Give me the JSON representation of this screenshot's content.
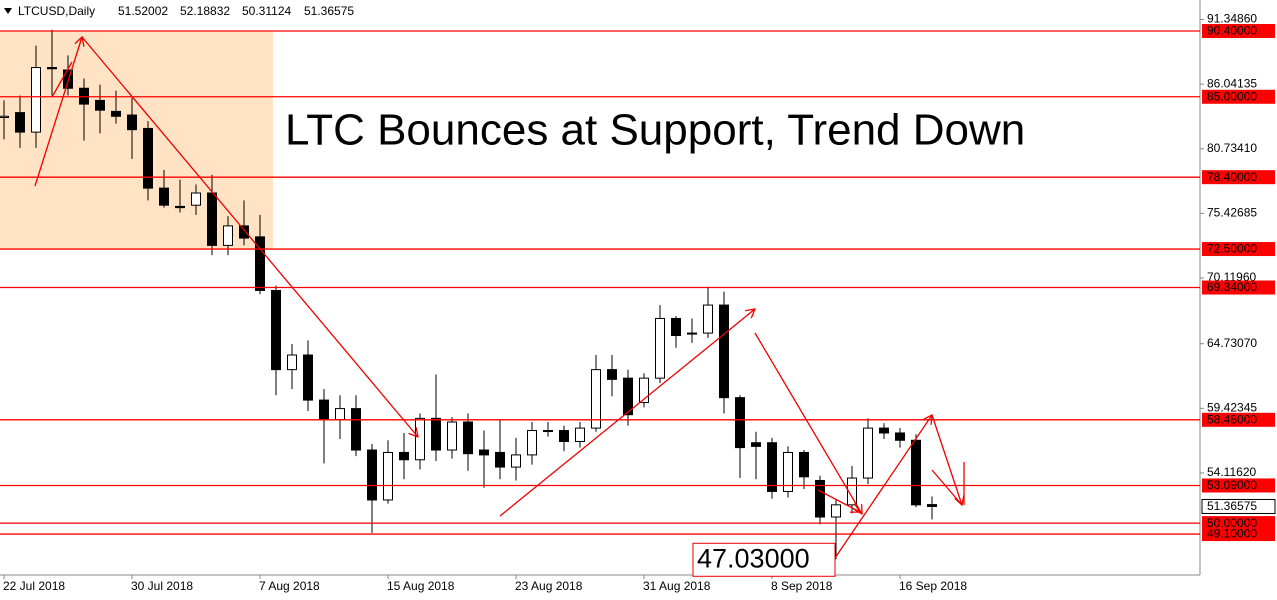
{
  "chart_data": {
    "type": "candlestick",
    "symbol": "LTCUSD,Daily",
    "title": "LTC Bounces at Support, Trend Down",
    "categories": [
      "22 Jul 2018",
      null,
      null,
      null,
      null,
      null,
      null,
      null,
      "30 Jul 2018",
      null,
      null,
      null,
      null,
      null,
      null,
      null,
      "7 Aug 2018",
      null,
      null,
      null,
      null,
      null,
      null,
      null,
      "15 Aug 2018",
      null,
      null,
      null,
      null,
      null,
      null,
      null,
      "23 Aug 2018",
      null,
      null,
      null,
      null,
      null,
      null,
      null,
      "31 Aug 2018",
      null,
      null,
      null,
      null,
      null,
      null,
      null,
      "8 Sep 2018",
      null,
      null,
      null,
      null,
      null,
      null,
      null,
      "16 Sep 2018",
      null,
      null
    ],
    "open": [
      83.3,
      83.7,
      82.1,
      87.4,
      87.2,
      85.7,
      84.7,
      83.8,
      83.5,
      82.4,
      77.5,
      76.0,
      76.1,
      77.1,
      72.8,
      74.4,
      73.5,
      69.1,
      62.6,
      63.8,
      60.1,
      58.5,
      59.4,
      56.0,
      51.9,
      55.8,
      55.2,
      58.6,
      56.0,
      58.3,
      56.0,
      55.8,
      54.6,
      55.6,
      57.6,
      57.6,
      56.7,
      57.8,
      62.6,
      61.9,
      59.9,
      61.9,
      66.8,
      65.6,
      65.6,
      67.9,
      60.3,
      56.6,
      56.6,
      52.6,
      55.8,
      53.5,
      50.5,
      51.5,
      53.7,
      57.8,
      57.4,
      56.8,
      51.52002
    ],
    "high": [
      84.7,
      85.1,
      89.2,
      90.5,
      88.4,
      86.5,
      86.0,
      85.5,
      84.9,
      83.0,
      79.0,
      78.2,
      77.8,
      78.6,
      75.2,
      76.5,
      75.3,
      69.5,
      64.7,
      65.0,
      61.0,
      60.5,
      60.5,
      56.5,
      56.8,
      57.4,
      59.0,
      62.2,
      58.7,
      59.0,
      57.6,
      58.5,
      57.0,
      58.3,
      58.3,
      58.0,
      58.3,
      63.8,
      63.8,
      62.6,
      62.3,
      67.9,
      67.0,
      66.8,
      69.4,
      69.0,
      60.5,
      57.5,
      57.0,
      56.3,
      56.0,
      53.9,
      52.0,
      54.7,
      58.6,
      58.2,
      57.8,
      57.3,
      52.18832
    ],
    "low": [
      81.5,
      80.8,
      80.8,
      85.1,
      85.1,
      81.4,
      82.0,
      82.8,
      79.9,
      76.5,
      75.9,
      75.5,
      75.3,
      72.0,
      72.0,
      72.8,
      68.8,
      60.5,
      61.0,
      59.2,
      54.9,
      56.9,
      55.5,
      49.2,
      51.6,
      53.6,
      54.4,
      55.1,
      55.3,
      54.3,
      52.9,
      53.6,
      53.5,
      54.8,
      57.1,
      55.9,
      56.2,
      57.5,
      60.4,
      58.0,
      59.5,
      61.5,
      64.4,
      64.8,
      65.2,
      59.0,
      53.7,
      53.6,
      52.0,
      52.1,
      52.8,
      49.9,
      47.03,
      50.8,
      53.2,
      56.9,
      56.2,
      51.3,
      50.31124
    ],
    "close": [
      83.4,
      82.1,
      87.4,
      87.3,
      85.7,
      84.4,
      83.9,
      83.4,
      82.3,
      77.5,
      76.1,
      75.9,
      77.1,
      72.8,
      74.4,
      73.4,
      69.1,
      62.6,
      63.8,
      60.1,
      58.5,
      59.4,
      56.0,
      51.9,
      55.8,
      55.2,
      58.6,
      56.0,
      58.3,
      55.7,
      55.6,
      54.6,
      55.6,
      57.6,
      57.6,
      56.7,
      57.8,
      62.6,
      61.8,
      58.9,
      61.9,
      66.8,
      65.4,
      65.6,
      67.9,
      60.3,
      56.2,
      56.3,
      52.6,
      55.8,
      53.8,
      50.5,
      51.5,
      53.7,
      57.8,
      57.4,
      56.8,
      51.5,
      51.36575
    ],
    "up_color": "#ffffff",
    "down_color": "#000000",
    "ylim": [
      45.74,
      92.945
    ],
    "yticks": [
      {
        "value": 91.3486,
        "label": "91.34860"
      },
      {
        "value": 86.04135,
        "label": "86.04135"
      },
      {
        "value": 80.7341,
        "label": "80.73410"
      },
      {
        "value": 75.42685,
        "label": "75.42685"
      },
      {
        "value": 70.1196,
        "label": "70.11960"
      },
      {
        "value": 64.7307,
        "label": "64.73070"
      },
      {
        "value": 59.42345,
        "label": "59.42345"
      },
      {
        "value": 54.1162,
        "label": "54.11620"
      }
    ],
    "levels": [
      {
        "value": 90.4,
        "label": "90.40000"
      },
      {
        "value": 85,
        "label": "85.00000"
      },
      {
        "value": 78.4,
        "label": "78.40000"
      },
      {
        "value": 72.5,
        "label": "72.50000"
      },
      {
        "value": 69.34,
        "label": "69.34000"
      },
      {
        "value": 58.48,
        "label": "58.48000"
      },
      {
        "value": 53.09,
        "label": "53.09000"
      },
      {
        "value": 50,
        "label": "50.00000"
      },
      {
        "value": 49.1,
        "label": "49.10000"
      }
    ],
    "level_color": "#ff0000",
    "annotation": {
      "value": 47.03,
      "label": "47.03000"
    }
  }
}
